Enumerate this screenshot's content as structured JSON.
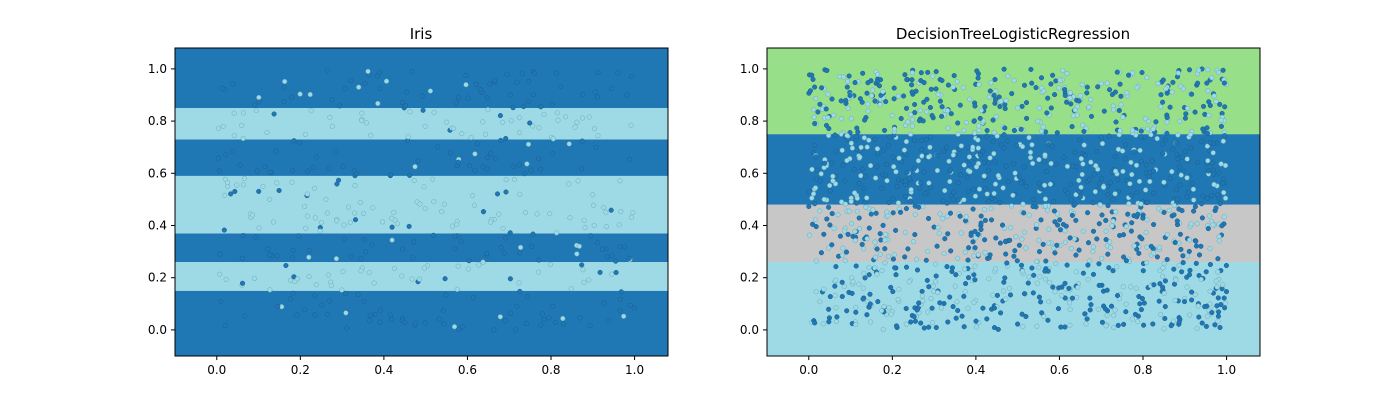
{
  "chart_data": [
    {
      "type": "scatter",
      "title": "Iris",
      "xlabel": "",
      "ylabel": "",
      "xlim": [
        -0.1,
        1.08
      ],
      "ylim": [
        -0.1,
        1.08
      ],
      "x_ticks": [
        "0.0",
        "0.2",
        "0.4",
        "0.6",
        "0.8",
        "1.0"
      ],
      "y_ticks": [
        "0.0",
        "0.2",
        "0.4",
        "0.6",
        "0.8",
        "1.0"
      ],
      "colors": {
        "dark": "#1f77b4",
        "light": "#9edae5"
      },
      "regions": [
        {
          "class": "dark",
          "y": [
            -0.1,
            0.15
          ]
        },
        {
          "class": "light",
          "y": [
            0.15,
            0.26
          ]
        },
        {
          "class": "dark",
          "y": [
            0.26,
            0.37
          ]
        },
        {
          "class": "light",
          "y": [
            0.37,
            0.59
          ]
        },
        {
          "class": "dark",
          "y": [
            0.59,
            0.73
          ]
        },
        {
          "class": "light",
          "y": [
            0.73,
            0.85
          ]
        },
        {
          "class": "dark",
          "y": [
            0.85,
            1.08
          ]
        }
      ],
      "points_per_panel": 450
    },
    {
      "type": "scatter",
      "title": "DecisionTreeLogisticRegression",
      "xlabel": "",
      "ylabel": "",
      "xlim": [
        -0.1,
        1.08
      ],
      "ylim": [
        -0.1,
        1.08
      ],
      "x_ticks": [
        "0.0",
        "0.2",
        "0.4",
        "0.6",
        "0.8",
        "1.0"
      ],
      "y_ticks": [
        "0.0",
        "0.2",
        "0.4",
        "0.6",
        "0.8",
        "1.0"
      ],
      "colors": {
        "green": "#98df8a",
        "dark": "#1f77b4",
        "gray": "#c7c7c7",
        "light": "#9edae5"
      },
      "regions": [
        {
          "class": "light",
          "y": [
            -0.1,
            0.26
          ]
        },
        {
          "class": "gray",
          "y": [
            0.26,
            0.48
          ]
        },
        {
          "class": "dark",
          "y": [
            0.48,
            0.75
          ]
        },
        {
          "class": "green",
          "y": [
            0.75,
            1.08
          ]
        }
      ],
      "points_per_panel": 1500
    }
  ]
}
